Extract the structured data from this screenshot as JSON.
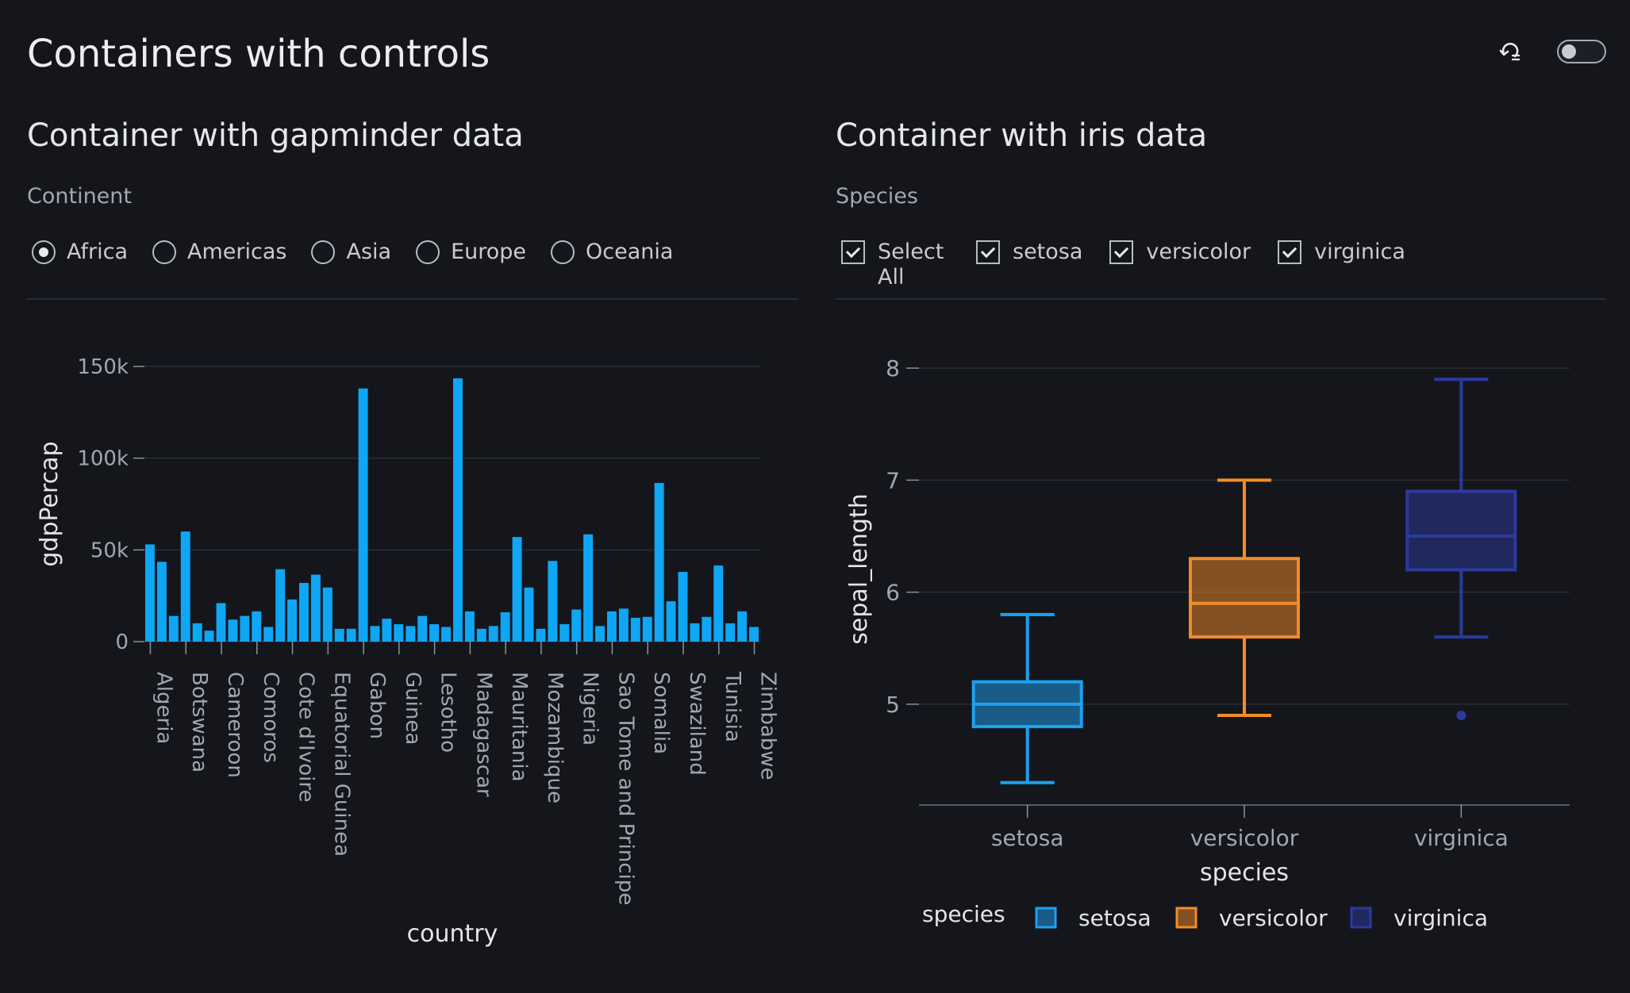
{
  "page": {
    "title": "Containers with controls"
  },
  "icons": {
    "reset": "reset-icon",
    "theme_toggle": "toggle-switch"
  },
  "containers": [
    {
      "title": "Container with gapminder data",
      "control_label": "Continent",
      "options": [
        {
          "label": "Africa",
          "selected": true
        },
        {
          "label": "Americas",
          "selected": false
        },
        {
          "label": "Asia",
          "selected": false
        },
        {
          "label": "Europe",
          "selected": false
        },
        {
          "label": "Oceania",
          "selected": false
        }
      ]
    },
    {
      "title": "Container with iris data",
      "control_label": "Species",
      "options": [
        {
          "label": "Select All",
          "checked": true
        },
        {
          "label": "setosa",
          "checked": true
        },
        {
          "label": "versicolor",
          "checked": true
        },
        {
          "label": "virginica",
          "checked": true
        }
      ]
    }
  ],
  "chart_data": [
    {
      "type": "bar",
      "xlabel": "country",
      "ylabel": "gdpPercap",
      "ylim": [
        0,
        150000
      ],
      "yticks": [
        0,
        50000,
        100000,
        150000
      ],
      "ytick_labels": [
        "0",
        "50k",
        "100k",
        "150k"
      ],
      "xtick_labels": [
        "Algeria",
        "Botswana",
        "Cameroon",
        "Comoros",
        "Cote d'Ivoire",
        "Equatorial Guinea",
        "Gabon",
        "Guinea",
        "Lesotho",
        "Madagascar",
        "Mauritania",
        "Mozambique",
        "Nigeria",
        "Sao Tome and Principe",
        "Somalia",
        "Swaziland",
        "Tunisia",
        "Zimbabwe"
      ],
      "xtick_index": [
        0,
        3,
        6,
        9,
        12,
        15,
        18,
        21,
        24,
        27,
        30,
        33,
        36,
        39,
        42,
        45,
        48,
        51
      ],
      "values": [
        53000,
        43500,
        14000,
        60000,
        10000,
        6000,
        21000,
        12000,
        14000,
        16500,
        8000,
        39500,
        23000,
        32000,
        36500,
        29500,
        7000,
        7000,
        138000,
        8500,
        12500,
        9500,
        8500,
        14000,
        9500,
        8000,
        143500,
        16500,
        7000,
        8500,
        16000,
        57000,
        29500,
        7000,
        44000,
        9500,
        17500,
        58500,
        8500,
        16500,
        18000,
        13000,
        13500,
        86500,
        22000,
        38000,
        10000,
        13500,
        41500,
        10000,
        16500,
        8000
      ],
      "bar_color": "#0fa6f5",
      "grid": true
    },
    {
      "type": "box",
      "xlabel": "species",
      "ylabel": "sepal_length",
      "yticks": [
        5,
        6,
        7,
        8
      ],
      "ylim": [
        4.1,
        8.1
      ],
      "categories": [
        "setosa",
        "versicolor",
        "virginica"
      ],
      "series": [
        {
          "name": "setosa",
          "min": 4.3,
          "q1": 4.8,
          "median": 5.0,
          "q3": 5.2,
          "max": 5.8,
          "outliers": [],
          "color": "#1da1f2"
        },
        {
          "name": "versicolor",
          "min": 4.9,
          "q1": 5.6,
          "median": 5.9,
          "q3": 6.3,
          "max": 7.0,
          "outliers": [],
          "color": "#f28c28"
        },
        {
          "name": "virginica",
          "min": 5.6,
          "q1": 6.2,
          "median": 6.5,
          "q3": 6.9,
          "max": 7.9,
          "outliers": [
            4.9
          ],
          "color": "#2c3a9e"
        }
      ],
      "legend_title": "species",
      "legend": [
        "setosa",
        "versicolor",
        "virginica"
      ],
      "legend_position": "bottom",
      "grid": true
    }
  ]
}
